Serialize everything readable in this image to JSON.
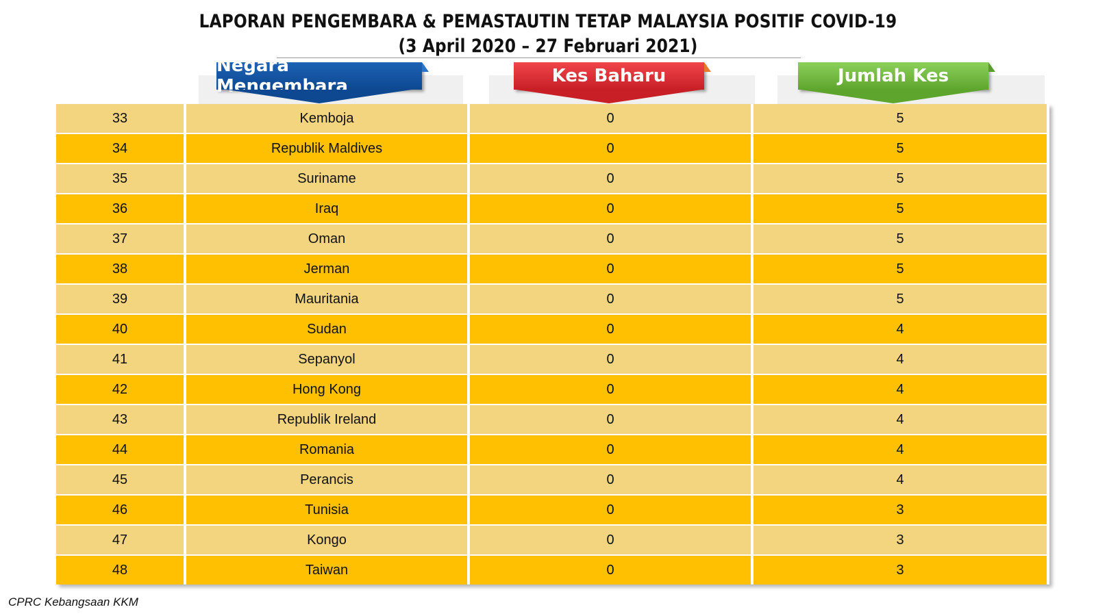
{
  "title": {
    "line1": "LAPORAN PENGEMBARA & PEMASTAUTIN TETAP MALAYSIA POSITIF COVID-19",
    "line2": "(3 April 2020 – 27 Februari 2021)"
  },
  "headers": {
    "country": "Negara Mengembara",
    "new_cases": "Kes Baharu",
    "total_cases": "Jumlah Kes"
  },
  "colors": {
    "row_light": "#f3d47f",
    "row_dark": "#fec000",
    "header_blue": "#0d4891",
    "header_red": "#c81e26",
    "header_green": "#5ea52e"
  },
  "rows": [
    {
      "no": "33",
      "country": "Kemboja",
      "new": "0",
      "total": "5"
    },
    {
      "no": "34",
      "country": "Republik Maldives",
      "new": "0",
      "total": "5"
    },
    {
      "no": "35",
      "country": "Suriname",
      "new": "0",
      "total": "5"
    },
    {
      "no": "36",
      "country": "Iraq",
      "new": "0",
      "total": "5"
    },
    {
      "no": "37",
      "country": "Oman",
      "new": "0",
      "total": "5"
    },
    {
      "no": "38",
      "country": "Jerman",
      "new": "0",
      "total": "5"
    },
    {
      "no": "39",
      "country": "Mauritania",
      "new": "0",
      "total": "5"
    },
    {
      "no": "40",
      "country": "Sudan",
      "new": "0",
      "total": "4"
    },
    {
      "no": "41",
      "country": "Sepanyol",
      "new": "0",
      "total": "4"
    },
    {
      "no": "42",
      "country": "Hong Kong",
      "new": "0",
      "total": "4"
    },
    {
      "no": "43",
      "country": "Republik Ireland",
      "new": "0",
      "total": "4"
    },
    {
      "no": "44",
      "country": "Romania",
      "new": "0",
      "total": "4"
    },
    {
      "no": "45",
      "country": "Perancis",
      "new": "0",
      "total": "4"
    },
    {
      "no": "46",
      "country": "Tunisia",
      "new": "0",
      "total": "3"
    },
    {
      "no": "47",
      "country": "Kongo",
      "new": "0",
      "total": "3"
    },
    {
      "no": "48",
      "country": "Taiwan",
      "new": "0",
      "total": "3"
    }
  ],
  "footer": "CPRC Kebangsaan KKM"
}
